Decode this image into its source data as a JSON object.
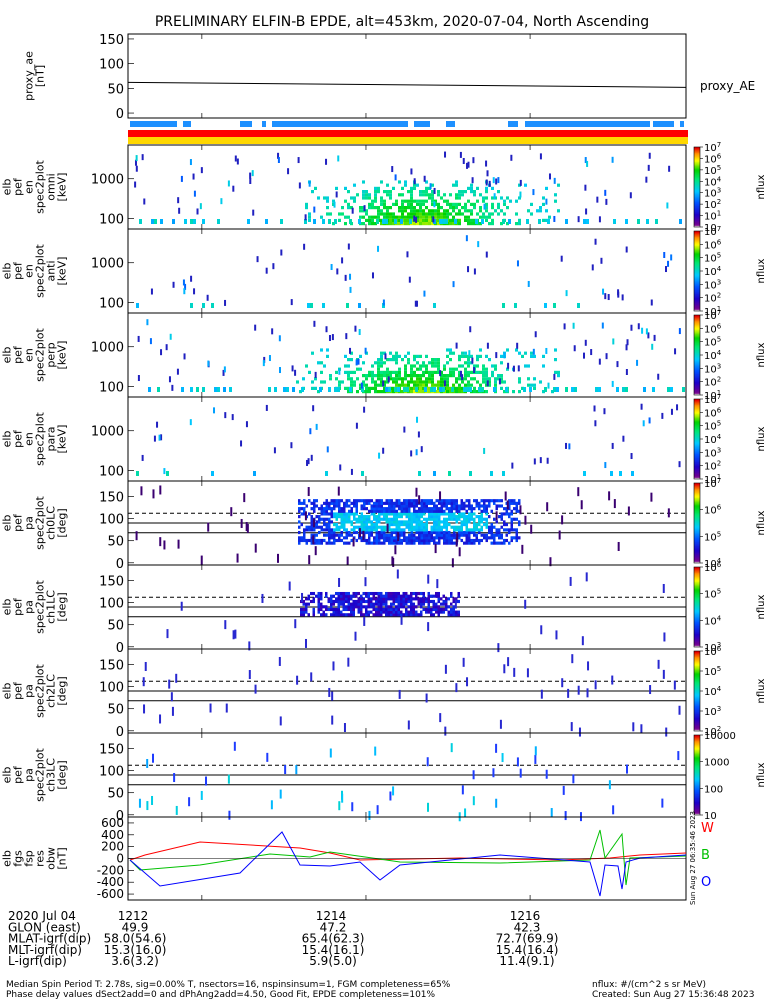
{
  "title": "PRELIMINARY ELFIN-B EPDE, alt=453km, 2020-07-04, North Ascending",
  "chart_data": {
    "type": "heatmap",
    "panels": [
      {
        "id": "proxy_ae",
        "ylabel": [
          "proxy_ae",
          "[nT]"
        ],
        "yticks": [
          0,
          50,
          100,
          150
        ],
        "ylim": [
          -10,
          160
        ],
        "legend": "proxy_AE",
        "line": {
          "x": [
            1211.1,
            1217.9
          ],
          "y": [
            62,
            52
          ]
        }
      },
      {
        "id": "pef_en_spec2plot_omni",
        "ylabel": [
          "elb",
          "pef",
          "en",
          "spec2plot",
          "omni",
          "[keV]"
        ],
        "yticks": [
          100,
          1000
        ],
        "colorbar": "nflux",
        "cbar_labels": [
          "10",
          "10^1",
          "10^2",
          "10^3",
          "10^4",
          "10^5",
          "10^6",
          "10^7"
        ]
      },
      {
        "id": "pef_en_spec2plot_anti",
        "ylabel": [
          "elb",
          "pef",
          "en",
          "spec2plot",
          "anti",
          "[keV]"
        ],
        "yticks": [
          100,
          1000
        ],
        "colorbar": "nflux",
        "cbar_labels": [
          "10^1",
          "10^2",
          "10^3",
          "10^4",
          "10^5",
          "10^6",
          "10^7"
        ]
      },
      {
        "id": "pef_en_spec2plot_perp",
        "ylabel": [
          "elb",
          "pef",
          "en",
          "spec2plot",
          "perp",
          "[keV]"
        ],
        "yticks": [
          100,
          1000
        ],
        "colorbar": "nflux",
        "cbar_labels": [
          "10^1",
          "10^2",
          "10^3",
          "10^4",
          "10^5",
          "10^6",
          "10^7"
        ]
      },
      {
        "id": "pef_en_spec2plot_para",
        "ylabel": [
          "elb",
          "pef",
          "en",
          "spec2plot",
          "para",
          "[keV]"
        ],
        "yticks": [
          100,
          1000
        ],
        "colorbar": "nflux",
        "cbar_labels": [
          "10^1",
          "10^2",
          "10^3",
          "10^4",
          "10^5",
          "10^6",
          "10^7"
        ]
      },
      {
        "id": "pef_pa_spec2plot_ch0LC",
        "ylabel": [
          "elb",
          "pef",
          "pa",
          "spec2plot",
          "ch0LC",
          "[deg]"
        ],
        "yticks": [
          0,
          50,
          100,
          150
        ],
        "colorbar": "nflux",
        "cbar_labels": [
          "10^4",
          "10^5",
          "10^6",
          "10^7"
        ]
      },
      {
        "id": "pef_pa_spec2plot_ch1LC",
        "ylabel": [
          "elb",
          "pef",
          "pa",
          "spec2plot",
          "ch1LC",
          "[deg]"
        ],
        "yticks": [
          0,
          50,
          100,
          150
        ],
        "colorbar": "nflux",
        "cbar_labels": [
          "10^3",
          "10^4",
          "10^5",
          "10^6"
        ]
      },
      {
        "id": "pef_pa_spec2plot_ch2LC",
        "ylabel": [
          "elb",
          "pef",
          "pa",
          "spec2plot",
          "ch2LC",
          "[deg]"
        ],
        "yticks": [
          0,
          50,
          100,
          150
        ],
        "colorbar": "nflux",
        "cbar_labels": [
          "10^2",
          "10^3",
          "10^4",
          "10^5",
          "10^6"
        ]
      },
      {
        "id": "pef_pa_spec2plot_ch3LC",
        "ylabel": [
          "elb",
          "pef",
          "pa",
          "spec2plot",
          "ch3LC",
          "[deg]"
        ],
        "yticks": [
          0,
          50,
          100,
          150
        ],
        "colorbar": "nflux",
        "cbar_labels": [
          "10",
          "100",
          "1000",
          "10000"
        ]
      },
      {
        "id": "fgs_fsp_res_obw",
        "ylabel": [
          "elb",
          "fgs",
          "fsp",
          "res",
          "obw",
          "[nT]"
        ],
        "yticks": [
          -600,
          -400,
          -200,
          0,
          200,
          400,
          600
        ],
        "series": [
          {
            "name": "W",
            "color": "#ff0000"
          },
          {
            "name": "B",
            "color": "#00c000"
          },
          {
            "name": "O",
            "color": "#0000ff"
          }
        ],
        "side_text": "Sun Aug 27 06:35:46 2023"
      }
    ],
    "x_ticks": [
      "1212",
      "1214",
      "1216"
    ],
    "orbit_rows": [
      {
        "label": "2020 Jul 04",
        "values": [
          "1212",
          "1214",
          "1216"
        ]
      },
      {
        "label": "GLON (east)",
        "values": [
          "49.9",
          "47.2",
          "42.3"
        ]
      },
      {
        "label": "MLAT-igrf(dip)",
        "values": [
          "58.0(54.6)",
          "65.4(62.3)",
          "72.7(69.9)"
        ]
      },
      {
        "label": "MLT-igrf(dip)",
        "values": [
          "15.3(16.0)",
          "15.4(16.1)",
          "15.4(16.4)"
        ]
      },
      {
        "label": "L-igrf(dip)",
        "values": [
          "3.6(3.2)",
          "5.9(5.0)",
          "11.4(9.1)"
        ]
      }
    ]
  },
  "footer": {
    "line1": "Median Spin Period T: 2.78s, sig=0.00% T, nsectors=16, nspinsinsum=1, FGM completeness=65%",
    "line2": "Phase delay values dSect2add=0 and dPhAng2add=4.50, Good Fit, EPDE completeness=101%",
    "units": "nflux: #/(cm^2 s sr MeV)",
    "created": "Created: Sun Aug 27 15:36:48 2023"
  },
  "colors": {
    "blue_bar": "#1e90ff",
    "red_bar": "#ff0000",
    "yellow_bar": "#ffd700"
  }
}
